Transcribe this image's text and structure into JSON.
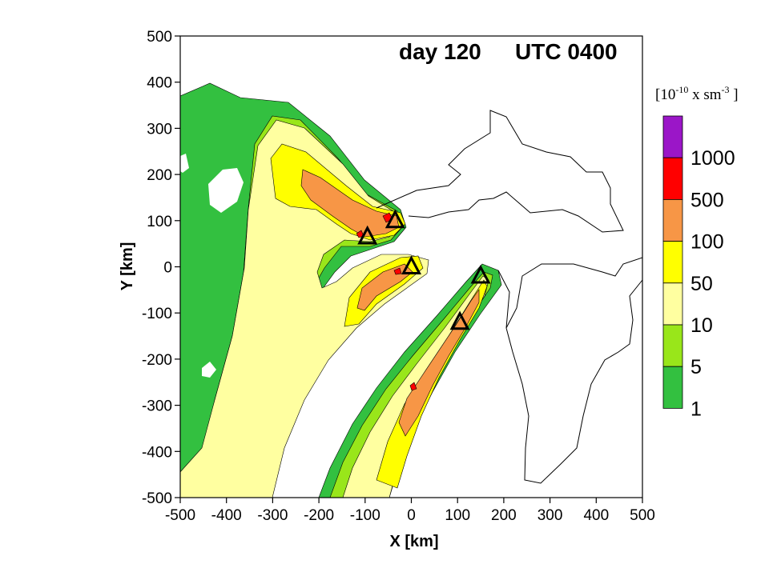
{
  "chart_data": {
    "type": "contour",
    "title_day": "day 120",
    "title_time": "UTC 0400",
    "xlabel": "X [km]",
    "ylabel": "Y [km]",
    "xlim": [
      -500,
      500
    ],
    "ylim": [
      -500,
      500
    ],
    "xticks": [
      -500,
      -400,
      -300,
      -200,
      -100,
      0,
      100,
      200,
      300,
      400,
      500
    ],
    "yticks": [
      500,
      400,
      300,
      200,
      100,
      0,
      -100,
      -200,
      -300,
      -400,
      -500
    ],
    "colorbar": {
      "unit_base": "[10",
      "unit_exp1": "-10",
      "unit_mid": " x sm",
      "unit_exp2": "-3",
      "unit_end": " ]",
      "levels": [
        {
          "label": "1000",
          "color": "#9b16c8"
        },
        {
          "label": "500",
          "color": "#ff0000"
        },
        {
          "label": "100",
          "color": "#f79646"
        },
        {
          "label": "50",
          "color": "#ffff00"
        },
        {
          "label": "10",
          "color": "#ffffa0"
        },
        {
          "label": "5",
          "color": "#99e61a"
        },
        {
          "label": "1",
          "color": "#33c040"
        }
      ],
      "top_color": "#9b16c8",
      "level_labels": [
        "1000",
        "500",
        "100",
        "50",
        "10",
        "5",
        "1"
      ]
    },
    "sources": [
      {
        "x": -35,
        "y": 100
      },
      {
        "x": -95,
        "y": 65
      },
      {
        "x": 0,
        "y": 0
      },
      {
        "x": 150,
        "y": -20
      },
      {
        "x": 105,
        "y": -120
      }
    ],
    "contour_colors": {
      "level1": "#33c040",
      "level5": "#99e61a",
      "level10": "#ffffa0",
      "level50": "#ffff00",
      "level100": "#f79646",
      "level500": "#ff0000"
    }
  }
}
